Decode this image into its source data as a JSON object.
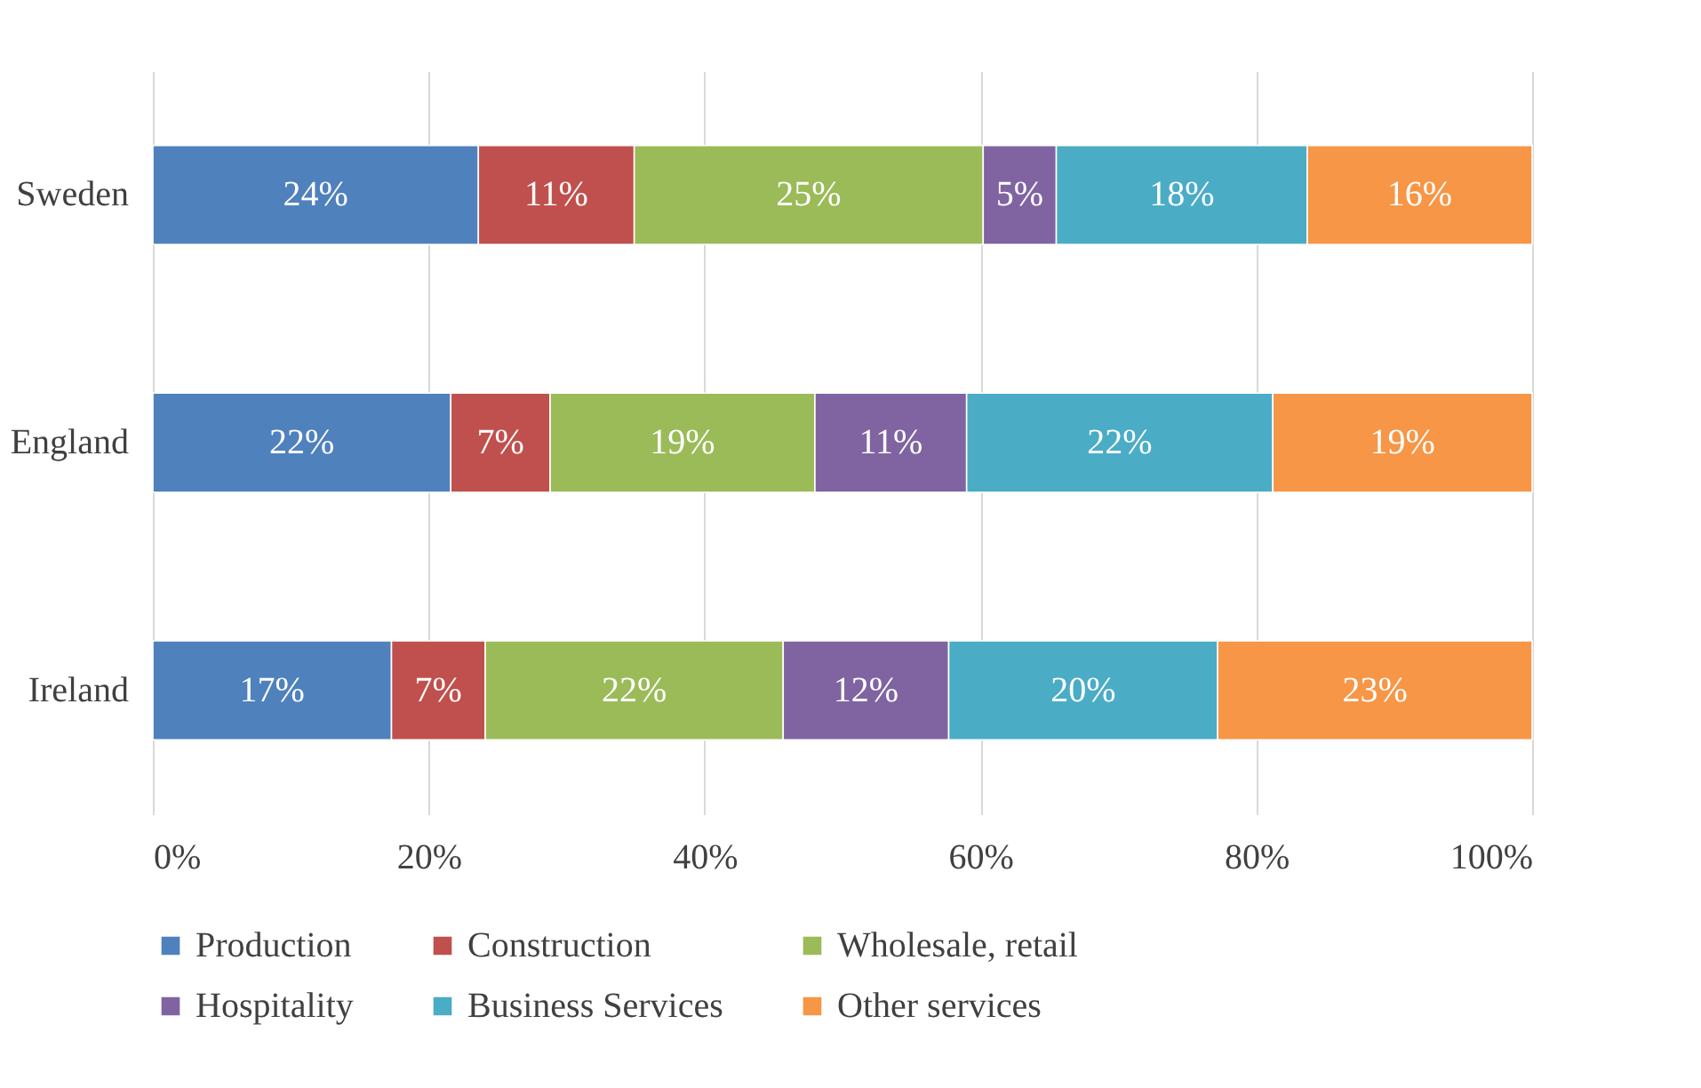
{
  "chart_data": {
    "type": "bar",
    "orientation": "horizontal",
    "stacked": true,
    "categories": [
      "Sweden",
      "England",
      "Ireland"
    ],
    "series": [
      {
        "name": "Production",
        "color": "#4f81bd",
        "values": [
          23.6,
          21.6,
          17.3
        ],
        "value_labels": [
          "24%",
          "22%",
          "17%"
        ]
      },
      {
        "name": "Construction",
        "color": "#c0504d",
        "values": [
          11.3,
          7.2,
          6.8
        ],
        "value_labels": [
          "11%",
          "7%",
          "7%"
        ]
      },
      {
        "name": "Wholesale, retail",
        "color": "#9bbb59",
        "values": [
          25.3,
          19.2,
          21.6
        ],
        "value_labels": [
          "25%",
          "19%",
          "22%"
        ]
      },
      {
        "name": "Hospitality",
        "color": "#8064a2",
        "values": [
          5.3,
          11.0,
          12.0
        ],
        "value_labels": [
          "5%",
          "11%",
          "12%"
        ]
      },
      {
        "name": "Business Services",
        "color": "#4bacc6",
        "values": [
          18.2,
          22.2,
          19.5
        ],
        "value_labels": [
          "18%",
          "22%",
          "20%"
        ]
      },
      {
        "name": "Other services",
        "color": "#f79646",
        "values": [
          16.3,
          18.8,
          22.8
        ],
        "value_labels": [
          "16%",
          "19%",
          "23%"
        ]
      }
    ],
    "xlim": [
      0,
      100
    ],
    "xticks": [
      {
        "value": 0,
        "label": "0%"
      },
      {
        "value": 20,
        "label": "20%"
      },
      {
        "value": 40,
        "label": "40%"
      },
      {
        "value": 60,
        "label": "60%"
      },
      {
        "value": 80,
        "label": "80%"
      },
      {
        "value": 100,
        "label": "100%"
      }
    ],
    "grid": "x",
    "legend": "bottom"
  }
}
